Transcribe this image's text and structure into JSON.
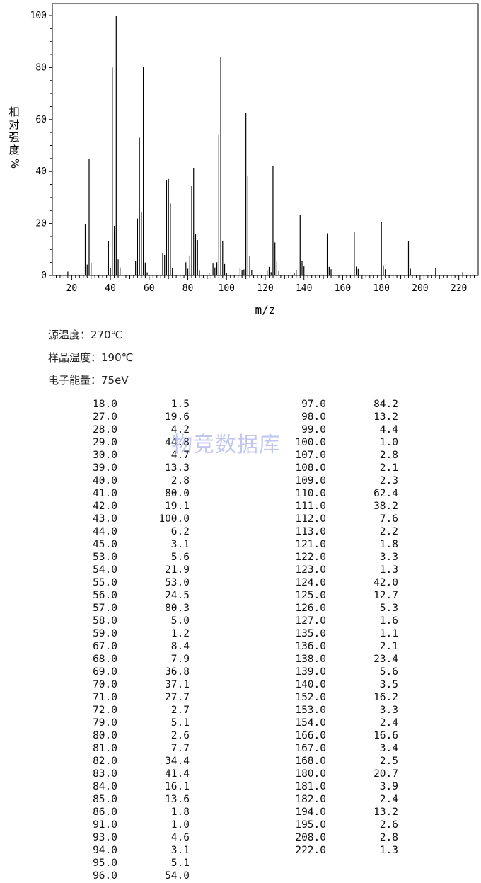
{
  "chart_data": {
    "type": "bar",
    "ylabel": "相对强度 %",
    "xlabel": "m/z",
    "xlim": [
      10,
      230
    ],
    "ylim": [
      0,
      100
    ],
    "x_ticks": [
      "20",
      "40",
      "60",
      "80",
      "100",
      "120",
      "140",
      "160",
      "180",
      "200",
      "220"
    ],
    "y_ticks": [
      "0",
      "20",
      "40",
      "60",
      "80",
      "100"
    ],
    "x": [
      18,
      27,
      28,
      29,
      30,
      39,
      40,
      41,
      42,
      43,
      44,
      45,
      53,
      54,
      55,
      56,
      57,
      58,
      59,
      67,
      68,
      69,
      70,
      71,
      72,
      79,
      80,
      81,
      82,
      83,
      84,
      85,
      86,
      91,
      93,
      94,
      95,
      96,
      97,
      98,
      99,
      100,
      107,
      108,
      109,
      110,
      111,
      112,
      113,
      121,
      122,
      123,
      124,
      125,
      126,
      127,
      135,
      136,
      138,
      139,
      140,
      152,
      153,
      154,
      166,
      167,
      168,
      180,
      181,
      182,
      194,
      195,
      208,
      222
    ],
    "values": [
      1.5,
      19.6,
      4.2,
      44.8,
      4.7,
      13.3,
      2.8,
      80.0,
      19.1,
      100.0,
      6.2,
      3.1,
      5.6,
      21.9,
      53.0,
      24.5,
      80.3,
      5.0,
      1.2,
      8.4,
      7.9,
      36.8,
      37.1,
      27.7,
      2.7,
      5.1,
      2.6,
      7.7,
      34.4,
      41.4,
      16.1,
      13.6,
      1.8,
      1.0,
      4.6,
      3.1,
      5.1,
      54.0,
      84.2,
      13.2,
      4.4,
      1.0,
      2.8,
      2.1,
      2.3,
      62.4,
      38.2,
      7.6,
      2.2,
      1.8,
      3.3,
      1.3,
      42.0,
      12.7,
      5.3,
      1.6,
      1.1,
      2.1,
      23.4,
      5.6,
      3.5,
      16.2,
      3.3,
      2.4,
      16.6,
      3.4,
      2.5,
      20.7,
      3.9,
      2.4,
      13.2,
      2.6,
      2.8,
      1.3
    ]
  },
  "conditions": {
    "source_temp": "源温度：270℃",
    "sample_temp": "样品温度：190℃",
    "electron_energy": "电子能量：75eV"
  },
  "peak_table_left": [
    [
      "18.0",
      "1.5"
    ],
    [
      "27.0",
      "19.6"
    ],
    [
      "28.0",
      "4.2"
    ],
    [
      "29.0",
      "44.8"
    ],
    [
      "30.0",
      "4.7"
    ],
    [
      "39.0",
      "13.3"
    ],
    [
      "40.0",
      "2.8"
    ],
    [
      "41.0",
      "80.0"
    ],
    [
      "42.0",
      "19.1"
    ],
    [
      "43.0",
      "100.0"
    ],
    [
      "44.0",
      "6.2"
    ],
    [
      "45.0",
      "3.1"
    ],
    [
      "53.0",
      "5.6"
    ],
    [
      "54.0",
      "21.9"
    ],
    [
      "55.0",
      "53.0"
    ],
    [
      "56.0",
      "24.5"
    ],
    [
      "57.0",
      "80.3"
    ],
    [
      "58.0",
      "5.0"
    ],
    [
      "59.0",
      "1.2"
    ],
    [
      "67.0",
      "8.4"
    ],
    [
      "68.0",
      "7.9"
    ],
    [
      "69.0",
      "36.8"
    ],
    [
      "70.0",
      "37.1"
    ],
    [
      "71.0",
      "27.7"
    ],
    [
      "72.0",
      "2.7"
    ],
    [
      "79.0",
      "5.1"
    ],
    [
      "80.0",
      "2.6"
    ],
    [
      "81.0",
      "7.7"
    ],
    [
      "82.0",
      "34.4"
    ],
    [
      "83.0",
      "41.4"
    ],
    [
      "84.0",
      "16.1"
    ],
    [
      "85.0",
      "13.6"
    ],
    [
      "86.0",
      "1.8"
    ],
    [
      "91.0",
      "1.0"
    ],
    [
      "93.0",
      "4.6"
    ],
    [
      "94.0",
      "3.1"
    ],
    [
      "95.0",
      "5.1"
    ],
    [
      "96.0",
      "54.0"
    ]
  ],
  "peak_table_right": [
    [
      "97.0",
      "84.2"
    ],
    [
      "98.0",
      "13.2"
    ],
    [
      "99.0",
      "4.4"
    ],
    [
      "100.0",
      "1.0"
    ],
    [
      "107.0",
      "2.8"
    ],
    [
      "108.0",
      "2.1"
    ],
    [
      "109.0",
      "2.3"
    ],
    [
      "110.0",
      "62.4"
    ],
    [
      "111.0",
      "38.2"
    ],
    [
      "112.0",
      "7.6"
    ],
    [
      "113.0",
      "2.2"
    ],
    [
      "121.0",
      "1.8"
    ],
    [
      "122.0",
      "3.3"
    ],
    [
      "123.0",
      "1.3"
    ],
    [
      "124.0",
      "42.0"
    ],
    [
      "125.0",
      "12.7"
    ],
    [
      "126.0",
      "5.3"
    ],
    [
      "127.0",
      "1.6"
    ],
    [
      "135.0",
      "1.1"
    ],
    [
      "136.0",
      "2.1"
    ],
    [
      "138.0",
      "23.4"
    ],
    [
      "139.0",
      "5.6"
    ],
    [
      "140.0",
      "3.5"
    ],
    [
      "152.0",
      "16.2"
    ],
    [
      "153.0",
      "3.3"
    ],
    [
      "154.0",
      "2.4"
    ],
    [
      "166.0",
      "16.6"
    ],
    [
      "167.0",
      "3.4"
    ],
    [
      "168.0",
      "2.5"
    ],
    [
      "180.0",
      "20.7"
    ],
    [
      "181.0",
      "3.9"
    ],
    [
      "182.0",
      "2.4"
    ],
    [
      "194.0",
      "13.2"
    ],
    [
      "195.0",
      "2.6"
    ],
    [
      "208.0",
      "2.8"
    ],
    [
      "222.0",
      "1.3"
    ]
  ],
  "watermark": "物竞数据库"
}
